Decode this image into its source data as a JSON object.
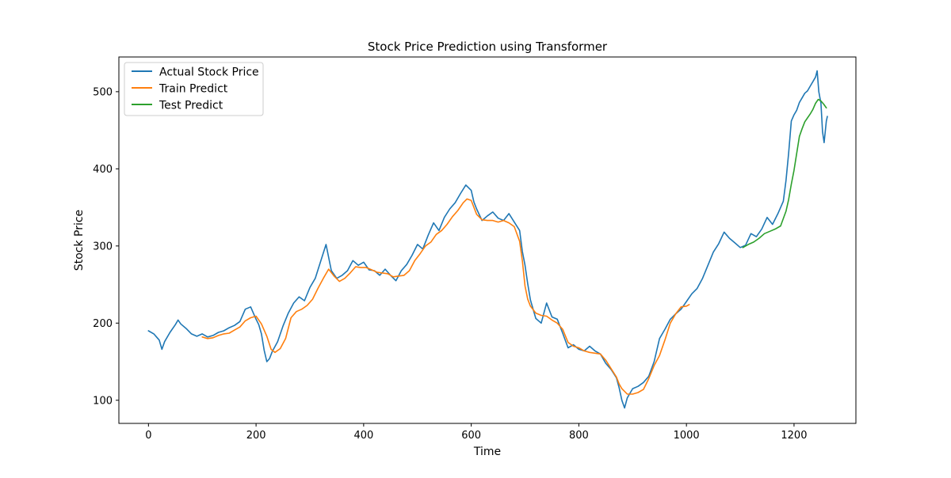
{
  "chart_data": {
    "type": "line",
    "title": "Stock Price Prediction using Transformer",
    "xlabel": "Time",
    "ylabel": "Stock Price",
    "xlim": [
      -55,
      1315
    ],
    "ylim": [
      70,
      545
    ],
    "xticks": [
      0,
      200,
      400,
      600,
      800,
      1000,
      1200
    ],
    "yticks": [
      100,
      200,
      300,
      400,
      500
    ],
    "grid": false,
    "legend_position": "upper-left",
    "series": [
      {
        "name": "Actual Stock Price",
        "color": "#1f77b4",
        "points": [
          [
            0,
            190
          ],
          [
            10,
            186
          ],
          [
            15,
            182
          ],
          [
            20,
            178
          ],
          [
            25,
            166
          ],
          [
            30,
            176
          ],
          [
            40,
            188
          ],
          [
            50,
            198
          ],
          [
            55,
            204
          ],
          [
            60,
            199
          ],
          [
            70,
            193
          ],
          [
            80,
            186
          ],
          [
            90,
            183
          ],
          [
            100,
            186
          ],
          [
            110,
            182
          ],
          [
            120,
            184
          ],
          [
            130,
            188
          ],
          [
            140,
            190
          ],
          [
            150,
            194
          ],
          [
            160,
            197
          ],
          [
            170,
            202
          ],
          [
            180,
            218
          ],
          [
            190,
            221
          ],
          [
            200,
            205
          ],
          [
            205,
            198
          ],
          [
            210,
            186
          ],
          [
            215,
            165
          ],
          [
            220,
            150
          ],
          [
            225,
            154
          ],
          [
            230,
            163
          ],
          [
            240,
            176
          ],
          [
            250,
            196
          ],
          [
            260,
            213
          ],
          [
            270,
            226
          ],
          [
            280,
            234
          ],
          [
            290,
            229
          ],
          [
            300,
            246
          ],
          [
            310,
            258
          ],
          [
            320,
            280
          ],
          [
            330,
            302
          ],
          [
            340,
            268
          ],
          [
            350,
            258
          ],
          [
            360,
            262
          ],
          [
            370,
            268
          ],
          [
            380,
            281
          ],
          [
            390,
            275
          ],
          [
            400,
            279
          ],
          [
            410,
            269
          ],
          [
            420,
            268
          ],
          [
            430,
            262
          ],
          [
            440,
            270
          ],
          [
            450,
            262
          ],
          [
            460,
            255
          ],
          [
            470,
            268
          ],
          [
            480,
            276
          ],
          [
            490,
            288
          ],
          [
            500,
            302
          ],
          [
            510,
            296
          ],
          [
            520,
            314
          ],
          [
            530,
            330
          ],
          [
            540,
            320
          ],
          [
            550,
            337
          ],
          [
            560,
            348
          ],
          [
            570,
            356
          ],
          [
            580,
            368
          ],
          [
            590,
            379
          ],
          [
            600,
            372
          ],
          [
            605,
            357
          ],
          [
            610,
            348
          ],
          [
            620,
            333
          ],
          [
            630,
            339
          ],
          [
            640,
            344
          ],
          [
            650,
            336
          ],
          [
            660,
            333
          ],
          [
            670,
            342
          ],
          [
            680,
            331
          ],
          [
            690,
            320
          ],
          [
            695,
            293
          ],
          [
            700,
            275
          ],
          [
            705,
            251
          ],
          [
            710,
            230
          ],
          [
            720,
            206
          ],
          [
            730,
            200
          ],
          [
            740,
            226
          ],
          [
            750,
            208
          ],
          [
            760,
            205
          ],
          [
            770,
            187
          ],
          [
            780,
            168
          ],
          [
            790,
            172
          ],
          [
            800,
            166
          ],
          [
            810,
            164
          ],
          [
            820,
            170
          ],
          [
            830,
            164
          ],
          [
            840,
            160
          ],
          [
            850,
            148
          ],
          [
            860,
            140
          ],
          [
            870,
            129
          ],
          [
            875,
            116
          ],
          [
            880,
            100
          ],
          [
            885,
            90
          ],
          [
            890,
            103
          ],
          [
            900,
            115
          ],
          [
            910,
            118
          ],
          [
            920,
            123
          ],
          [
            930,
            131
          ],
          [
            940,
            150
          ],
          [
            950,
            180
          ],
          [
            960,
            192
          ],
          [
            970,
            205
          ],
          [
            980,
            212
          ],
          [
            990,
            218
          ],
          [
            1000,
            228
          ],
          [
            1010,
            238
          ],
          [
            1020,
            245
          ],
          [
            1030,
            258
          ],
          [
            1040,
            275
          ],
          [
            1050,
            292
          ],
          [
            1060,
            303
          ],
          [
            1070,
            318
          ],
          [
            1080,
            310
          ],
          [
            1090,
            304
          ],
          [
            1100,
            298
          ],
          [
            1110,
            301
          ],
          [
            1120,
            316
          ],
          [
            1130,
            312
          ],
          [
            1140,
            322
          ],
          [
            1150,
            337
          ],
          [
            1160,
            328
          ],
          [
            1170,
            342
          ],
          [
            1180,
            358
          ],
          [
            1185,
            385
          ],
          [
            1190,
            420
          ],
          [
            1195,
            462
          ],
          [
            1200,
            470
          ],
          [
            1205,
            476
          ],
          [
            1210,
            486
          ],
          [
            1215,
            492
          ],
          [
            1220,
            498
          ],
          [
            1225,
            501
          ],
          [
            1230,
            507
          ],
          [
            1235,
            513
          ],
          [
            1240,
            519
          ],
          [
            1243,
            527
          ],
          [
            1246,
            500
          ],
          [
            1250,
            485
          ],
          [
            1253,
            448
          ],
          [
            1256,
            434
          ],
          [
            1260,
            462
          ],
          [
            1262,
            468
          ]
        ]
      },
      {
        "name": "Train Predict",
        "color": "#ff7f0e",
        "points": [
          [
            100,
            182
          ],
          [
            110,
            180
          ],
          [
            120,
            181
          ],
          [
            130,
            184
          ],
          [
            140,
            186
          ],
          [
            150,
            187
          ],
          [
            160,
            191
          ],
          [
            170,
            195
          ],
          [
            180,
            203
          ],
          [
            190,
            207
          ],
          [
            200,
            209
          ],
          [
            210,
            199
          ],
          [
            220,
            183
          ],
          [
            228,
            166
          ],
          [
            235,
            162
          ],
          [
            245,
            167
          ],
          [
            255,
            180
          ],
          [
            265,
            207
          ],
          [
            275,
            215
          ],
          [
            285,
            218
          ],
          [
            295,
            223
          ],
          [
            305,
            231
          ],
          [
            315,
            245
          ],
          [
            325,
            258
          ],
          [
            335,
            270
          ],
          [
            345,
            261
          ],
          [
            355,
            254
          ],
          [
            365,
            258
          ],
          [
            375,
            265
          ],
          [
            385,
            273
          ],
          [
            395,
            272
          ],
          [
            405,
            272
          ],
          [
            415,
            269
          ],
          [
            425,
            266
          ],
          [
            435,
            265
          ],
          [
            445,
            264
          ],
          [
            455,
            260
          ],
          [
            465,
            261
          ],
          [
            475,
            262
          ],
          [
            485,
            268
          ],
          [
            495,
            281
          ],
          [
            505,
            290
          ],
          [
            515,
            300
          ],
          [
            525,
            305
          ],
          [
            535,
            315
          ],
          [
            545,
            320
          ],
          [
            555,
            328
          ],
          [
            565,
            338
          ],
          [
            575,
            346
          ],
          [
            585,
            356
          ],
          [
            592,
            361
          ],
          [
            600,
            359
          ],
          [
            610,
            341
          ],
          [
            620,
            334
          ],
          [
            630,
            333
          ],
          [
            640,
            333
          ],
          [
            650,
            331
          ],
          [
            660,
            333
          ],
          [
            670,
            330
          ],
          [
            680,
            325
          ],
          [
            690,
            306
          ],
          [
            695,
            281
          ],
          [
            700,
            248
          ],
          [
            705,
            231
          ],
          [
            710,
            222
          ],
          [
            720,
            213
          ],
          [
            730,
            210
          ],
          [
            740,
            209
          ],
          [
            750,
            204
          ],
          [
            760,
            200
          ],
          [
            770,
            192
          ],
          [
            780,
            175
          ],
          [
            790,
            170
          ],
          [
            800,
            168
          ],
          [
            810,
            164
          ],
          [
            820,
            162
          ],
          [
            830,
            161
          ],
          [
            840,
            160
          ],
          [
            850,
            152
          ],
          [
            860,
            141
          ],
          [
            870,
            130
          ],
          [
            875,
            121
          ],
          [
            880,
            115
          ],
          [
            890,
            108
          ],
          [
            900,
            108
          ],
          [
            910,
            110
          ],
          [
            920,
            114
          ],
          [
            930,
            128
          ],
          [
            940,
            145
          ],
          [
            950,
            158
          ],
          [
            960,
            178
          ],
          [
            970,
            200
          ],
          [
            980,
            212
          ],
          [
            990,
            221
          ],
          [
            1000,
            222
          ],
          [
            1005,
            224
          ]
        ]
      },
      {
        "name": "Test Predict",
        "color": "#2ca02c",
        "points": [
          [
            1105,
            298
          ],
          [
            1115,
            302
          ],
          [
            1125,
            305
          ],
          [
            1135,
            310
          ],
          [
            1145,
            316
          ],
          [
            1155,
            319
          ],
          [
            1165,
            322
          ],
          [
            1175,
            326
          ],
          [
            1185,
            345
          ],
          [
            1190,
            360
          ],
          [
            1195,
            380
          ],
          [
            1200,
            398
          ],
          [
            1205,
            420
          ],
          [
            1210,
            442
          ],
          [
            1215,
            452
          ],
          [
            1220,
            461
          ],
          [
            1225,
            466
          ],
          [
            1230,
            471
          ],
          [
            1235,
            477
          ],
          [
            1240,
            485
          ],
          [
            1245,
            490
          ],
          [
            1250,
            488
          ],
          [
            1255,
            484
          ],
          [
            1260,
            479
          ]
        ]
      }
    ]
  }
}
